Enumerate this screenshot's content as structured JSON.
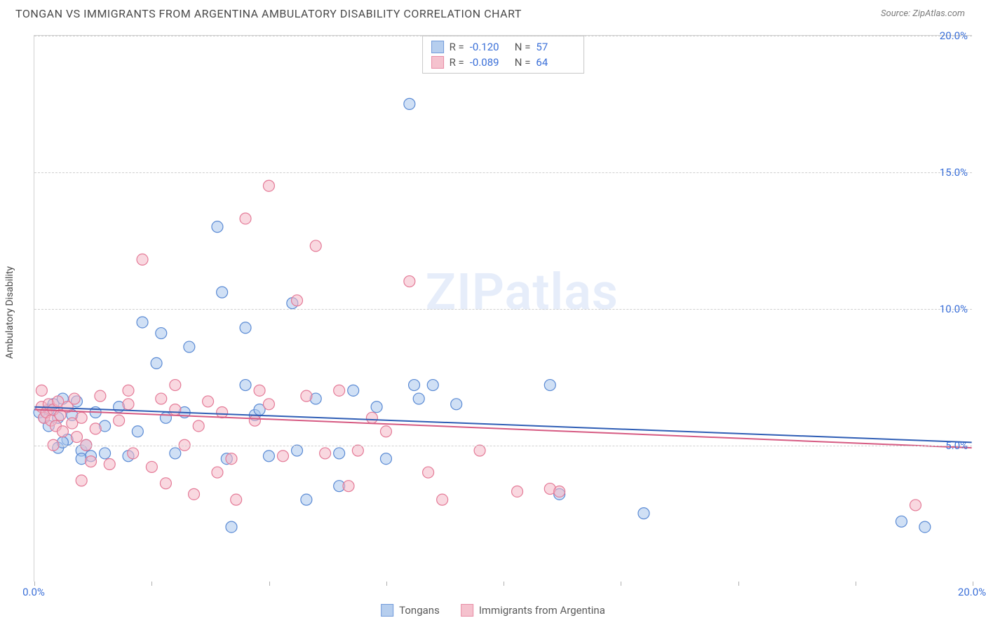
{
  "title": "TONGAN VS IMMIGRANTS FROM ARGENTINA AMBULATORY DISABILITY CORRELATION CHART",
  "source": "Source: ZipAtlas.com",
  "watermark": "ZIPatlas",
  "ylabel": "Ambulatory Disability",
  "chart": {
    "type": "scatter",
    "xlim": [
      0,
      20
    ],
    "ylim": [
      0,
      20
    ],
    "xtick_positions": [
      0,
      2.5,
      5,
      7.5,
      10,
      12.5,
      15,
      17.5,
      20
    ],
    "xtick_labels_shown": {
      "0": "0.0%",
      "20": "20.0%"
    },
    "ytick_positions": [
      5,
      10,
      15,
      20
    ],
    "ytick_labels": [
      "5.0%",
      "10.0%",
      "15.0%",
      "20.0%"
    ],
    "grid_color": "#d0d0d0",
    "background_color": "#ffffff",
    "marker_radius": 8,
    "marker_stroke_width": 1.2,
    "line_width": 2,
    "series": [
      {
        "name": "Tongans",
        "fill": "#aac6ec",
        "stroke": "#5a8ad4",
        "fill_opacity": 0.55,
        "correlation": "-0.120",
        "n": "57",
        "trend": {
          "x1": 0,
          "y1": 6.4,
          "x2": 20,
          "y2": 5.1,
          "color": "#2e5db5"
        },
        "points": [
          [
            0.1,
            6.2
          ],
          [
            0.2,
            6.0
          ],
          [
            0.3,
            6.3
          ],
          [
            0.3,
            5.7
          ],
          [
            0.4,
            6.5
          ],
          [
            0.5,
            6.0
          ],
          [
            0.5,
            4.9
          ],
          [
            0.6,
            6.7
          ],
          [
            0.7,
            5.2
          ],
          [
            0.8,
            6.1
          ],
          [
            0.9,
            6.6
          ],
          [
            1.0,
            4.8
          ],
          [
            1.0,
            4.5
          ],
          [
            1.1,
            5.0
          ],
          [
            1.2,
            4.6
          ],
          [
            1.3,
            6.2
          ],
          [
            1.5,
            4.7
          ],
          [
            1.5,
            5.7
          ],
          [
            2.0,
            4.6
          ],
          [
            2.2,
            5.5
          ],
          [
            2.3,
            9.5
          ],
          [
            2.6,
            8.0
          ],
          [
            2.7,
            9.1
          ],
          [
            3.0,
            4.7
          ],
          [
            3.2,
            6.2
          ],
          [
            3.3,
            8.6
          ],
          [
            3.9,
            13.0
          ],
          [
            4.0,
            10.6
          ],
          [
            4.1,
            4.5
          ],
          [
            4.2,
            2.0
          ],
          [
            4.5,
            7.2
          ],
          [
            4.5,
            9.3
          ],
          [
            4.7,
            6.1
          ],
          [
            4.8,
            6.3
          ],
          [
            5.0,
            4.6
          ],
          [
            5.5,
            10.2
          ],
          [
            5.6,
            4.8
          ],
          [
            5.8,
            3.0
          ],
          [
            6.0,
            6.7
          ],
          [
            6.5,
            4.7
          ],
          [
            6.5,
            3.5
          ],
          [
            6.8,
            7.0
          ],
          [
            7.3,
            6.4
          ],
          [
            7.5,
            4.5
          ],
          [
            8.0,
            17.5
          ],
          [
            8.1,
            7.2
          ],
          [
            8.2,
            6.7
          ],
          [
            8.5,
            7.2
          ],
          [
            9.0,
            6.5
          ],
          [
            11.0,
            7.2
          ],
          [
            11.2,
            3.2
          ],
          [
            13.0,
            2.5
          ],
          [
            18.5,
            2.2
          ],
          [
            19.0,
            2.0
          ],
          [
            1.8,
            6.4
          ],
          [
            0.6,
            5.1
          ],
          [
            2.8,
            6.0
          ]
        ]
      },
      {
        "name": "Immigrants from Argentina",
        "fill": "#f4b8c6",
        "stroke": "#e47a97",
        "fill_opacity": 0.55,
        "correlation": "-0.089",
        "n": "64",
        "trend": {
          "x1": 0,
          "y1": 6.3,
          "x2": 20,
          "y2": 4.9,
          "color": "#d65a82"
        },
        "points": [
          [
            0.15,
            6.4
          ],
          [
            0.2,
            6.0
          ],
          [
            0.25,
            6.2
          ],
          [
            0.3,
            6.5
          ],
          [
            0.35,
            5.9
          ],
          [
            0.4,
            6.3
          ],
          [
            0.45,
            5.7
          ],
          [
            0.5,
            6.6
          ],
          [
            0.55,
            6.1
          ],
          [
            0.6,
            5.5
          ],
          [
            0.7,
            6.4
          ],
          [
            0.8,
            5.8
          ],
          [
            0.85,
            6.7
          ],
          [
            0.9,
            5.3
          ],
          [
            1.0,
            6.0
          ],
          [
            1.1,
            5.0
          ],
          [
            1.2,
            4.4
          ],
          [
            1.3,
            5.6
          ],
          [
            1.4,
            6.8
          ],
          [
            1.6,
            4.3
          ],
          [
            1.8,
            5.9
          ],
          [
            2.0,
            6.5
          ],
          [
            2.1,
            4.7
          ],
          [
            2.3,
            11.8
          ],
          [
            2.5,
            4.2
          ],
          [
            2.7,
            6.7
          ],
          [
            2.8,
            3.6
          ],
          [
            3.0,
            6.3
          ],
          [
            3.2,
            5.0
          ],
          [
            3.4,
            3.2
          ],
          [
            3.5,
            5.7
          ],
          [
            3.7,
            6.6
          ],
          [
            3.9,
            4.0
          ],
          [
            4.0,
            6.2
          ],
          [
            4.2,
            4.5
          ],
          [
            4.3,
            3.0
          ],
          [
            4.5,
            13.3
          ],
          [
            4.7,
            5.9
          ],
          [
            5.0,
            14.5
          ],
          [
            5.0,
            6.5
          ],
          [
            5.3,
            4.6
          ],
          [
            5.6,
            10.3
          ],
          [
            5.8,
            6.8
          ],
          [
            6.0,
            12.3
          ],
          [
            6.2,
            4.7
          ],
          [
            6.5,
            7.0
          ],
          [
            6.7,
            3.5
          ],
          [
            6.9,
            4.8
          ],
          [
            7.2,
            6.0
          ],
          [
            7.5,
            5.5
          ],
          [
            8.0,
            11.0
          ],
          [
            8.4,
            4.0
          ],
          [
            8.7,
            3.0
          ],
          [
            9.5,
            4.8
          ],
          [
            10.3,
            3.3
          ],
          [
            11.0,
            3.4
          ],
          [
            11.2,
            3.3
          ],
          [
            18.8,
            2.8
          ],
          [
            0.15,
            7.0
          ],
          [
            0.4,
            5.0
          ],
          [
            1.0,
            3.7
          ],
          [
            2.0,
            7.0
          ],
          [
            3.0,
            7.2
          ],
          [
            4.8,
            7.0
          ]
        ]
      }
    ]
  },
  "stat_legend_labels": {
    "R": "R =",
    "N": "N ="
  },
  "bottom_legend": [
    {
      "label": "Tongans",
      "fill": "#aac6ec",
      "stroke": "#5a8ad4"
    },
    {
      "label": "Immigrants from Argentina",
      "fill": "#f4b8c6",
      "stroke": "#e47a97"
    }
  ]
}
